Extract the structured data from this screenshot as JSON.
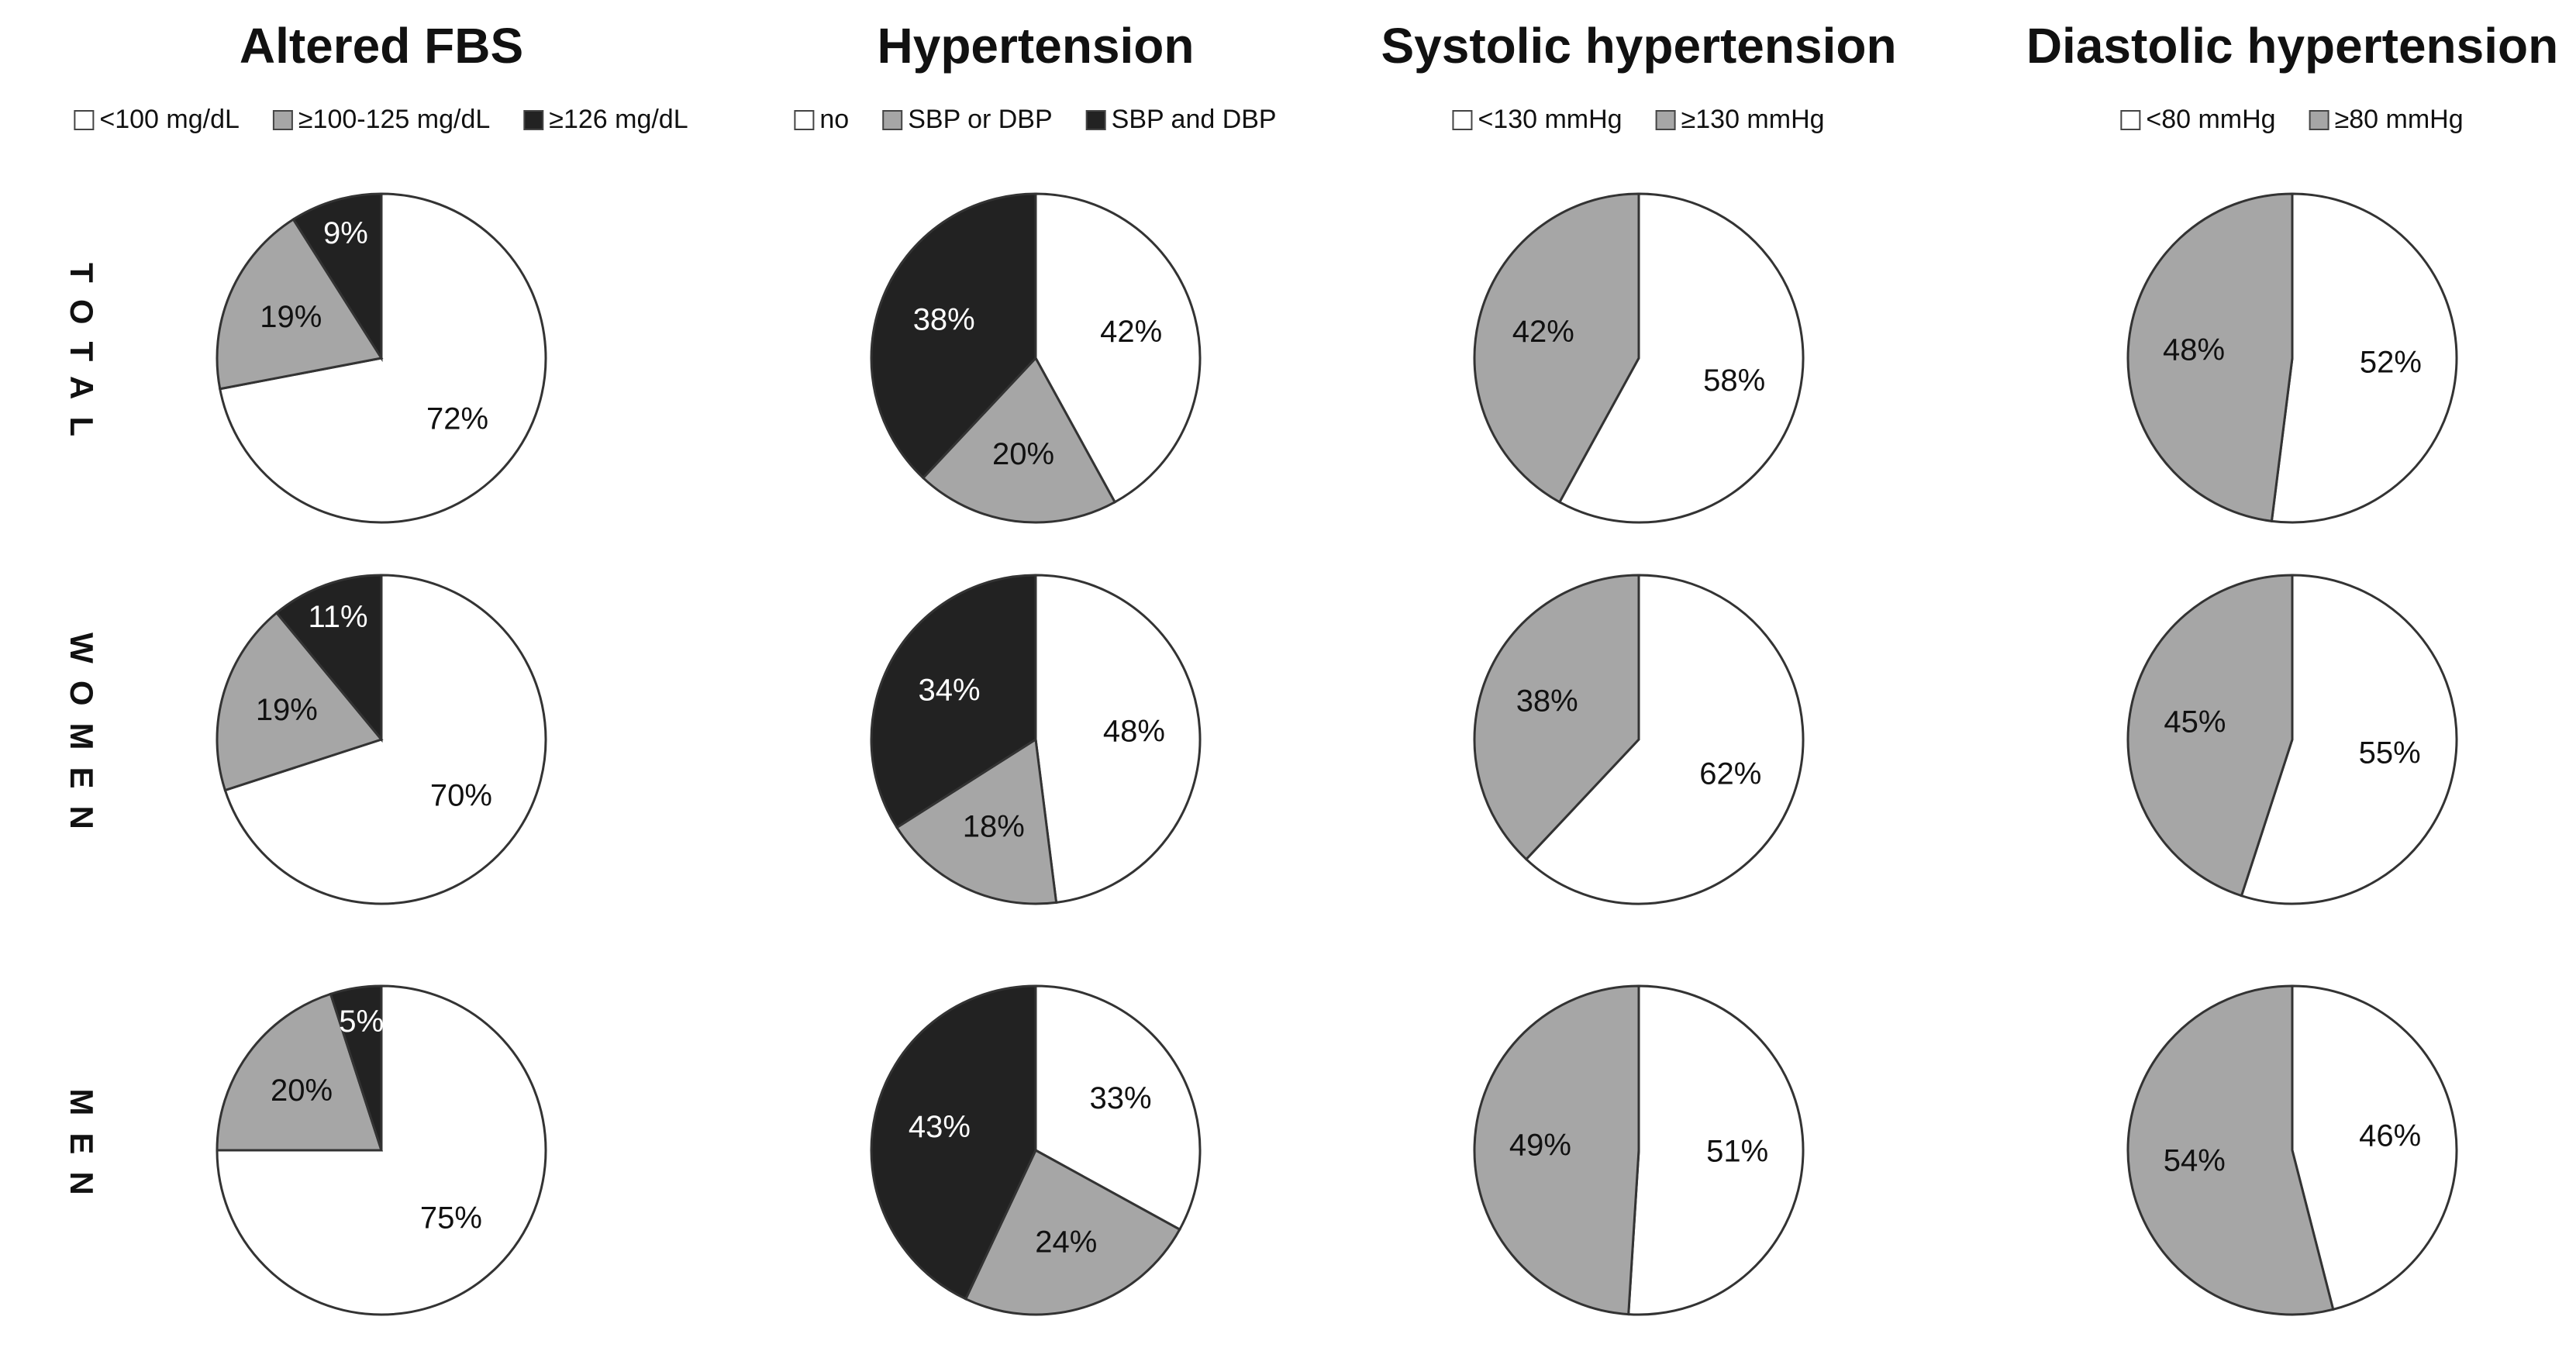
{
  "chart_data": [
    {
      "type": "pie",
      "title": "Altered FBS",
      "categories": [
        "<100 mg/dL",
        "≥100-125 mg/dL",
        "≥126 mg/dL"
      ],
      "colors": [
        "#ffffff",
        "#a6a6a6",
        "#222222"
      ],
      "series": [
        {
          "name": "TOTAL",
          "values": [
            72,
            19,
            9
          ],
          "value_labels": [
            "72%",
            "19%",
            "9%"
          ]
        },
        {
          "name": "WOMEN",
          "values": [
            70,
            19,
            11
          ],
          "value_labels": [
            "70%",
            "19%",
            "11%"
          ]
        },
        {
          "name": "MEN",
          "values": [
            75,
            20,
            5
          ],
          "value_labels": [
            "75%",
            "20%",
            "5%"
          ]
        }
      ]
    },
    {
      "type": "pie",
      "title": "Hypertension",
      "categories": [
        "no",
        "SBP or DBP",
        "SBP and DBP"
      ],
      "colors": [
        "#ffffff",
        "#a6a6a6",
        "#222222"
      ],
      "series": [
        {
          "name": "TOTAL",
          "values": [
            42,
            20,
            38
          ],
          "value_labels": [
            "42%",
            "20%",
            "38%"
          ]
        },
        {
          "name": "WOMEN",
          "values": [
            48,
            18,
            34
          ],
          "value_labels": [
            "48%",
            "18%",
            "34%"
          ]
        },
        {
          "name": "MEN",
          "values": [
            33,
            24,
            43
          ],
          "value_labels": [
            "33%",
            "24%",
            "43%"
          ]
        }
      ]
    },
    {
      "type": "pie",
      "title": "Systolic hypertension",
      "categories": [
        "<130 mmHg",
        "≥130 mmHg"
      ],
      "colors": [
        "#ffffff",
        "#a6a6a6"
      ],
      "series": [
        {
          "name": "TOTAL",
          "values": [
            58,
            42
          ],
          "value_labels": [
            "58%",
            "42%"
          ]
        },
        {
          "name": "WOMEN",
          "values": [
            62,
            38
          ],
          "value_labels": [
            "62%",
            "38%"
          ]
        },
        {
          "name": "MEN",
          "values": [
            51,
            49
          ],
          "value_labels": [
            "51%",
            "49%"
          ]
        }
      ]
    },
    {
      "type": "pie",
      "title": "Diastolic hypertension",
      "categories": [
        "<80 mmHg",
        "≥80 mmHg"
      ],
      "colors": [
        "#ffffff",
        "#a6a6a6"
      ],
      "series": [
        {
          "name": "TOTAL",
          "values": [
            52,
            48
          ],
          "value_labels": [
            "52%",
            "48%"
          ]
        },
        {
          "name": "WOMEN",
          "values": [
            55,
            45
          ],
          "value_labels": [
            "55%",
            "45%"
          ]
        },
        {
          "name": "MEN",
          "values": [
            46,
            54
          ],
          "value_labels": [
            "46%",
            "54%"
          ]
        }
      ]
    }
  ]
}
